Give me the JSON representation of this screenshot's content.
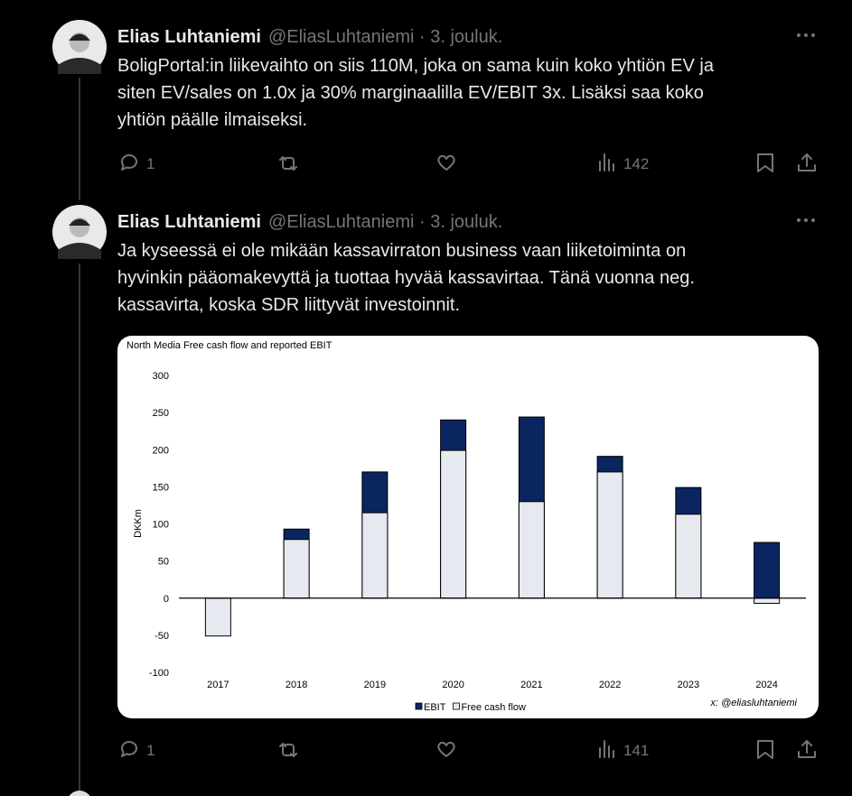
{
  "tweets": [
    {
      "name": "Elias Luhtaniemi",
      "meta": "@EliasLuhtaniemi · 3. jouluk.",
      "text": [
        "BoligPortal:in liikevaihto on siis 110M, joka on sama kuin koko yhtiön EV ja",
        "siten EV/sales on 1.0x ja 30% marginaalilla EV/EBIT 3x. Lisäksi saa koko",
        "yhtiön päälle ilmaiseksi."
      ],
      "replies": 1,
      "views": 142
    },
    {
      "name": "Elias Luhtaniemi",
      "meta": "@EliasLuhtaniemi · 3. jouluk.",
      "text": [
        "Ja kyseessä ei ole mikään kassavirraton business vaan liiketoiminta on",
        "hyvinkin pääomakevyttä ja tuottaa hyvää kassavirtaa. Tänä vuonna neg.",
        "kassavirta, koska SDR liittyvät investoinnit."
      ],
      "replies": 1,
      "views": 141,
      "chart": {
        "type": "bar",
        "title": "North Media Free cash flow and reported EBIT",
        "y_label": "DKKm",
        "categories": [
          "2017",
          "2018",
          "2019",
          "2020",
          "2021",
          "2022",
          "2023",
          "2024"
        ],
        "series": [
          {
            "name": "EBIT",
            "color": "#0b2561",
            "values": [
              null,
              93,
              170,
              240,
              244,
              191,
              149,
              75
            ]
          },
          {
            "name": "Free cash flow",
            "color": "#e6e9f0",
            "values": [
              -51,
              79,
              115,
              199,
              130,
              170,
              113,
              -7
            ]
          }
        ],
        "ylim": [
          -100,
          300
        ],
        "yticks": [
          -100,
          -50,
          0,
          50,
          100,
          150,
          200,
          250,
          300
        ],
        "watermark": "x: @eliasluhtaniemi"
      }
    }
  ]
}
